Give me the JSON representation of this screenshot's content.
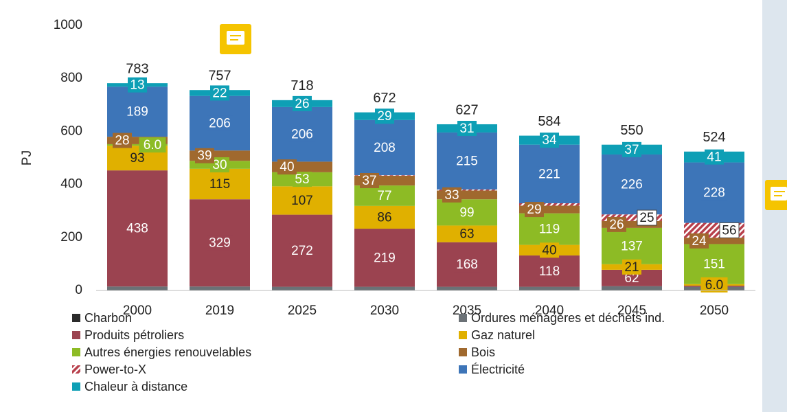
{
  "chart_data": {
    "type": "stacked_bar",
    "y_label": "PJ",
    "categories": [
      "2000",
      "2019",
      "2025",
      "2030",
      "2035",
      "2040",
      "2045",
      "2050"
    ],
    "totals": [
      783,
      757,
      718,
      672,
      627,
      584,
      550,
      524
    ],
    "ylim": [
      0,
      1000
    ],
    "yticks": [
      0,
      200,
      400,
      600,
      800,
      1000
    ],
    "grid": false,
    "series": [
      {
        "name": "Charbon",
        "color": "#2b2b2b",
        "values": [
          1,
          1,
          1,
          0,
          0,
          0,
          0,
          0
        ]
      },
      {
        "name": "Ordures ménagères et déchets ind.",
        "color": "#6b7176",
        "values": [
          14,
          14,
          13,
          14,
          14,
          14,
          16,
          14
        ]
      },
      {
        "name": "Produits pétroliers",
        "color": "#9b4350",
        "values": [
          438,
          329,
          272,
          219,
          168,
          118,
          62,
          4
        ],
        "value_labels": [
          "438",
          "329",
          "272",
          "219",
          "168",
          "118",
          "62",
          null
        ]
      },
      {
        "name": "Gaz naturel",
        "color": "#e0b000",
        "values": [
          93,
          115,
          107,
          86,
          63,
          40,
          21,
          6
        ],
        "value_labels": [
          "93",
          "115",
          "107",
          "86",
          "63",
          "40",
          "21",
          "6.0"
        ]
      },
      {
        "name": "Autres énergies renouvelables",
        "color": "#8dbb25",
        "values": [
          6,
          30,
          53,
          77,
          99,
          119,
          137,
          151
        ],
        "value_labels": [
          "6.0",
          "30",
          "53",
          "77",
          "99",
          "119",
          "137",
          "151"
        ]
      },
      {
        "name": "Bois",
        "color": "#a0692e",
        "values": [
          28,
          39,
          40,
          37,
          33,
          29,
          26,
          24
        ],
        "value_labels": [
          "28",
          "39",
          "40",
          "37",
          "33",
          "29",
          "26",
          "24"
        ]
      },
      {
        "name": "Power-to-X",
        "color": "#b8404c",
        "pattern": "hatch",
        "values": [
          0,
          0,
          0,
          2,
          4,
          9,
          25,
          56
        ],
        "value_labels": [
          null,
          null,
          null,
          null,
          null,
          null,
          "25",
          "56"
        ]
      },
      {
        "name": "Électricité",
        "color": "#3d75b8",
        "values": [
          189,
          206,
          206,
          208,
          215,
          221,
          226,
          228
        ],
        "value_labels": [
          "189",
          "206",
          "206",
          "208",
          "215",
          "221",
          "226",
          "228"
        ]
      },
      {
        "name": "Chaleur à distance",
        "color": "#0e9fb5",
        "values": [
          13,
          22,
          26,
          29,
          31,
          34,
          37,
          41
        ],
        "value_labels": [
          "13",
          "22",
          "26",
          "29",
          "31",
          "34",
          "37",
          "41"
        ]
      }
    ]
  }
}
